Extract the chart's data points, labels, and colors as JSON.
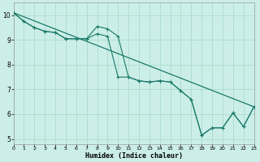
{
  "xlabel": "Humidex (Indice chaleur)",
  "bg_color": "#cceee8",
  "grid_color": "#aaddcc",
  "line_color": "#1a7a6a",
  "xlim": [
    0,
    23
  ],
  "ylim": [
    4.8,
    10.5
  ],
  "xticks": [
    0,
    1,
    2,
    3,
    4,
    5,
    6,
    7,
    8,
    9,
    10,
    11,
    12,
    13,
    14,
    15,
    16,
    17,
    18,
    19,
    20,
    21,
    22,
    23
  ],
  "yticks": [
    5,
    6,
    7,
    8,
    9,
    10
  ],
  "line1_x": [
    0,
    1,
    2,
    3,
    4,
    5,
    6,
    7,
    8,
    9,
    10,
    11,
    12,
    13,
    14,
    15,
    16,
    17,
    18,
    19,
    20,
    21,
    22,
    23
  ],
  "line1_y": [
    10.1,
    9.75,
    9.5,
    9.35,
    9.3,
    9.05,
    9.05,
    9.05,
    9.55,
    9.45,
    9.15,
    7.5,
    7.35,
    7.3,
    7.35,
    7.3,
    6.95,
    6.6,
    5.15,
    5.45,
    5.45,
    6.05,
    5.5,
    6.3
  ],
  "line2_x": [
    0,
    1,
    2,
    3,
    4,
    5,
    6,
    7,
    8,
    9,
    10,
    11,
    12,
    13,
    14,
    15,
    16,
    17,
    18,
    19,
    20,
    21,
    22,
    23
  ],
  "line2_y": [
    10.1,
    9.75,
    9.5,
    9.35,
    9.3,
    9.05,
    9.05,
    9.05,
    9.25,
    9.15,
    7.5,
    7.5,
    7.35,
    7.3,
    7.35,
    7.3,
    6.95,
    6.6,
    5.15,
    5.45,
    5.45,
    6.05,
    5.5,
    6.3
  ],
  "line3_x": [
    0,
    23
  ],
  "line3_y": [
    10.1,
    6.3
  ]
}
